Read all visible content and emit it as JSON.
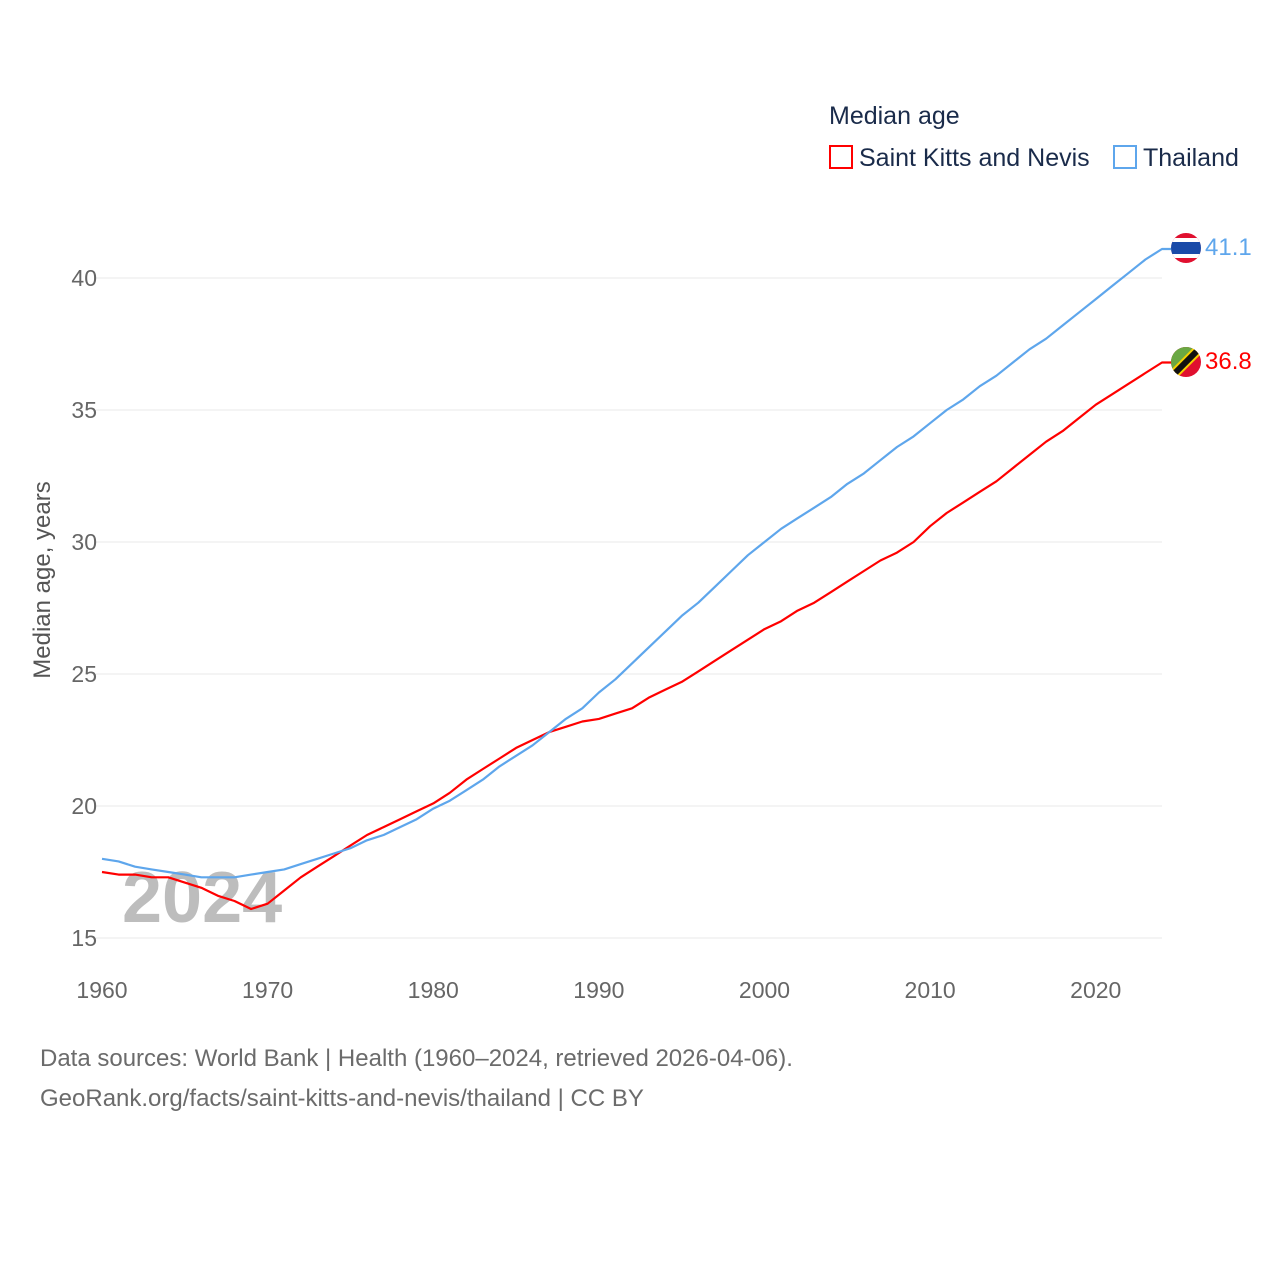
{
  "chart_data": {
    "type": "line",
    "title": "Median age",
    "xlabel": "",
    "ylabel": "Median age, years",
    "xlim": [
      1960,
      2024
    ],
    "ylim": [
      15,
      42
    ],
    "x_ticks": [
      "1960",
      "1970",
      "1980",
      "1990",
      "2000",
      "2010",
      "2020"
    ],
    "y_ticks": [
      "15",
      "20",
      "25",
      "30",
      "35",
      "40"
    ],
    "grid": true,
    "legend_position": "top-right",
    "watermark_year": "2024",
    "x": [
      1960,
      1961,
      1962,
      1963,
      1964,
      1965,
      1966,
      1967,
      1968,
      1969,
      1970,
      1971,
      1972,
      1973,
      1974,
      1975,
      1976,
      1977,
      1978,
      1979,
      1980,
      1981,
      1982,
      1983,
      1984,
      1985,
      1986,
      1987,
      1988,
      1989,
      1990,
      1991,
      1992,
      1993,
      1994,
      1995,
      1996,
      1997,
      1998,
      1999,
      2000,
      2001,
      2002,
      2003,
      2004,
      2005,
      2006,
      2007,
      2008,
      2009,
      2010,
      2011,
      2012,
      2013,
      2014,
      2015,
      2016,
      2017,
      2018,
      2019,
      2020,
      2021,
      2022,
      2023,
      2024
    ],
    "series": [
      {
        "name": "Saint Kitts and Nevis",
        "color": "#ff0000",
        "end_label": "36.8",
        "values": [
          17.5,
          17.4,
          17.4,
          17.3,
          17.3,
          17.1,
          16.9,
          16.6,
          16.4,
          16.1,
          16.3,
          16.8,
          17.3,
          17.7,
          18.1,
          18.5,
          18.9,
          19.2,
          19.5,
          19.8,
          20.1,
          20.5,
          21.0,
          21.4,
          21.8,
          22.2,
          22.5,
          22.8,
          23.0,
          23.2,
          23.3,
          23.5,
          23.7,
          24.1,
          24.4,
          24.7,
          25.1,
          25.5,
          25.9,
          26.3,
          26.7,
          27.0,
          27.4,
          27.7,
          28.1,
          28.5,
          28.9,
          29.3,
          29.6,
          30.0,
          30.6,
          31.1,
          31.5,
          31.9,
          32.3,
          32.8,
          33.3,
          33.8,
          34.2,
          34.7,
          35.2,
          35.6,
          36.0,
          36.4,
          36.8
        ]
      },
      {
        "name": "Thailand",
        "color": "#5ea6ec",
        "end_label": "41.1",
        "values": [
          18.0,
          17.9,
          17.7,
          17.6,
          17.5,
          17.4,
          17.3,
          17.3,
          17.3,
          17.4,
          17.5,
          17.6,
          17.8,
          18.0,
          18.2,
          18.4,
          18.7,
          18.9,
          19.2,
          19.5,
          19.9,
          20.2,
          20.6,
          21.0,
          21.5,
          21.9,
          22.3,
          22.8,
          23.3,
          23.7,
          24.3,
          24.8,
          25.4,
          26.0,
          26.6,
          27.2,
          27.7,
          28.3,
          28.9,
          29.5,
          30.0,
          30.5,
          30.9,
          31.3,
          31.7,
          32.2,
          32.6,
          33.1,
          33.6,
          34.0,
          34.5,
          35.0,
          35.4,
          35.9,
          36.3,
          36.8,
          37.3,
          37.7,
          38.2,
          38.7,
          39.2,
          39.7,
          40.2,
          40.7,
          41.1
        ]
      }
    ]
  },
  "footer": {
    "line1": "Data sources: World Bank | Health (1960–2024, retrieved 2026-04-06).",
    "line2": "GeoRank.org/facts/saint-kitts-and-nevis/thailand | CC BY"
  }
}
